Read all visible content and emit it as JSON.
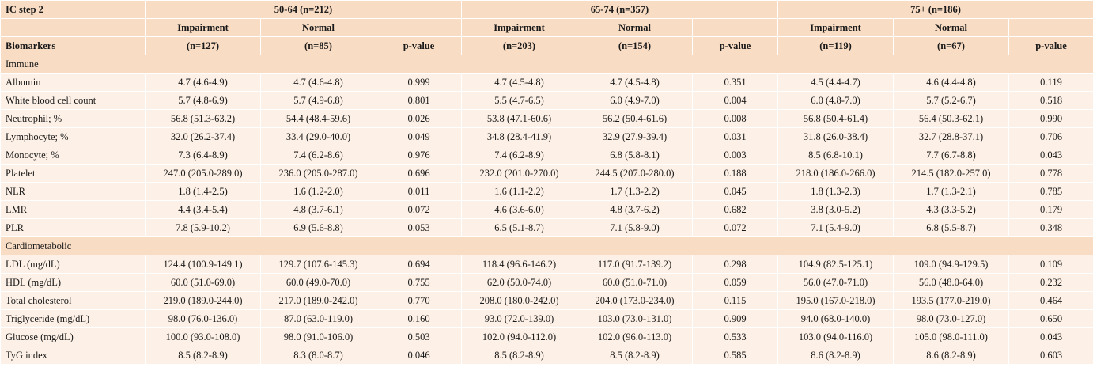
{
  "header": {
    "corner": "IC step 2",
    "groups": [
      "50-64 (n=212)",
      "65-74 (n=357)",
      "75+ (n=186)"
    ],
    "impairment": "Impairment",
    "normal": "Normal",
    "biomarkers": "Biomarkers",
    "pvalue": "p-value",
    "counts": [
      [
        "(n=127)",
        "(n=85)"
      ],
      [
        "(n=203)",
        "(n=154)"
      ],
      [
        "(n=119)",
        "(n=67)"
      ]
    ]
  },
  "sections": [
    {
      "title": "Immune",
      "rows": [
        [
          "Albumin",
          "4.7 (4.6-4.9)",
          "4.7 (4.6-4.8)",
          "0.999",
          "4.7 (4.5-4.8)",
          "4.7 (4.5-4.8)",
          "0.351",
          "4.5 (4.4-4.7)",
          "4.6 (4.4-4.8)",
          "0.119"
        ],
        [
          "White blood cell count",
          "5.7 (4.8-6.9)",
          "5.7 (4.9-6.8)",
          "0.801",
          "5.5 (4.7-6.5)",
          "6.0 (4.9-7.0)",
          "0.004",
          "6.0 (4.8-7.0)",
          "5.7 (5.2-6.7)",
          "0.518"
        ],
        [
          "Neutrophil; %",
          "56.8 (51.3-63.2)",
          "54.4 (48.4-59.6)",
          "0.026",
          "53.8 (47.1-60.6)",
          "56.2 (50.4-61.6)",
          "0.008",
          "56.8 (50.4-61.4)",
          "56.4 (50.3-62.1)",
          "0.990"
        ],
        [
          "Lymphocyte; %",
          "32.0 (26.2-37.4)",
          "33.4 (29.0-40.0)",
          "0.049",
          "34.8 (28.4-41.9)",
          "32.9 (27.9-39.4)",
          "0.031",
          "31.8 (26.0-38.4)",
          "32.7 (28.8-37.1)",
          "0.706"
        ],
        [
          "Monocyte; %",
          "7.3 (6.4-8.9)",
          "7.4 (6.2-8.6)",
          "0.976",
          "7.4 (6.2-8.9)",
          "6.8 (5.8-8.1)",
          "0.003",
          "8.5 (6.8-10.1)",
          "7.7 (6.7-8.8)",
          "0.043"
        ],
        [
          "Platelet",
          "247.0 (205.0-289.0)",
          "236.0 (205.0-287.0)",
          "0.696",
          "232.0 (201.0-270.0)",
          "244.5 (207.0-280.0)",
          "0.188",
          "218.0 (186.0-266.0)",
          "214.5 (182.0-257.0)",
          "0.778"
        ],
        [
          "NLR",
          "1.8 (1.4-2.5)",
          "1.6 (1.2-2.0)",
          "0.011",
          "1.6 (1.1-2.2)",
          "1.7 (1.3-2.2)",
          "0.045",
          "1.8 (1.3-2.3)",
          "1.7 (1.3-2.1)",
          "0.785"
        ],
        [
          "LMR",
          "4.4 (3.4-5.4)",
          "4.8 (3.7-6.1)",
          "0.072",
          "4.6 (3.6-6.0)",
          "4.8 (3.7-6.2)",
          "0.682",
          "3.8 (3.0-5.2)",
          "4.3 (3.3-5.2)",
          "0.179"
        ],
        [
          "PLR",
          "7.8 (5.9-10.2)",
          "6.9 (5.6-8.8)",
          "0.053",
          "6.5 (5.1-8.7)",
          "7.1 (5.8-9.0)",
          "0.072",
          "7.1 (5.4-9.0)",
          "6.8 (5.5-8.7)",
          "0.348"
        ]
      ]
    },
    {
      "title": "Cardiometabolic",
      "rows": [
        [
          "LDL (mg/dL)",
          "124.4 (100.9-149.1)",
          "129.7 (107.6-145.3)",
          "0.694",
          "118.4 (96.6-146.2)",
          "117.0 (91.7-139.2)",
          "0.298",
          "104.9 (82.5-125.1)",
          "109.0 (94.9-129.5)",
          "0.109"
        ],
        [
          "HDL (mg/dL)",
          "60.0 (51.0-69.0)",
          "60.0 (49.0-70.0)",
          "0.755",
          "62.0 (50.0-74.0)",
          "60.0 (51.0-71.0)",
          "0.059",
          "56.0 (47.0-71.0)",
          "56.0 (48.0-64.0)",
          "0.232"
        ],
        [
          "Total cholesterol",
          "219.0 (189.0-244.0)",
          "217.0 (189.0-242.0)",
          "0.770",
          "208.0 (180.0-242.0)",
          "204.0 (173.0-234.0)",
          "0.115",
          "195.0 (167.0-218.0)",
          "193.5 (177.0-219.0)",
          "0.464"
        ],
        [
          "Triglyceride (mg/dL)",
          "98.0 (76.0-136.0)",
          "87.0 (63.0-119.0)",
          "0.160",
          "93.0 (72.0-139.0)",
          "103.0 (73.0-131.0)",
          "0.909",
          "94.0 (68.0-140.0)",
          "98.0 (73.0-127.0)",
          "0.650"
        ],
        [
          "Glucose (mg/dL)",
          "100.0 (93.0-108.0)",
          "98.0 (91.0-106.0)",
          "0.503",
          "102.0 (94.0-112.0)",
          "102.0 (96.0-113.0)",
          "0.533",
          "103.0 (94.0-116.0)",
          "105.0 (98.0-111.0)",
          "0.043"
        ],
        [
          "TyG index",
          "8.5 (8.2-8.9)",
          "8.3 (8.0-8.7)",
          "0.046",
          "8.5 (8.2-8.9)",
          "8.5 (8.2-8.9)",
          "0.585",
          "8.6 (8.2-8.9)",
          "8.6 (8.2-8.9)",
          "0.603"
        ]
      ]
    }
  ]
}
